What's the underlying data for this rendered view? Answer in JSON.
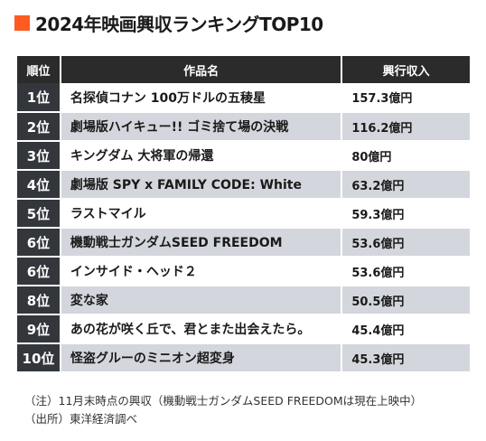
{
  "title": "2024年映画興収ランキングTOP10",
  "table": {
    "headers": [
      "順位",
      "作品名",
      "興行収入"
    ],
    "rows": [
      {
        "rank": "1位",
        "title": "名探偵コナン 100万ドルの五稜星",
        "revenue": "157.3億円"
      },
      {
        "rank": "2位",
        "title": "劇場版ハイキュー!! ゴミ捨て場の決戦",
        "revenue": "116.2億円"
      },
      {
        "rank": "3位",
        "title": "キングダム 大将軍の帰還",
        "revenue": "80億円"
      },
      {
        "rank": "4位",
        "title": "劇場版 SPY x FAMILY CODE: White",
        "revenue": "63.2億円"
      },
      {
        "rank": "5位",
        "title": "ラストマイル",
        "revenue": "59.3億円"
      },
      {
        "rank": "6位",
        "title": "機動戦士ガンダムSEED FREEDOM",
        "revenue": "53.6億円"
      },
      {
        "rank": "6位",
        "title": "インサイド・ヘッド２",
        "revenue": "53.6億円"
      },
      {
        "rank": "8位",
        "title": "変な家",
        "revenue": "50.5億円"
      },
      {
        "rank": "9位",
        "title": "あの花が咲く丘で、君とまた出会えたら。",
        "revenue": "45.4億円"
      },
      {
        "rank": "10位",
        "title": "怪盗グルーのミニオン超変身",
        "revenue": "45.3億円"
      }
    ]
  },
  "notes": {
    "note": "（注）11月末時点の興収（機動戦士ガンダムSEED FREEDOMは現在上映中）",
    "source": "（出所）東洋経済調べ"
  },
  "colors": {
    "accent": "#ff5a1f",
    "header_bg": "#2b2b2b",
    "rank_bg": "#33373c",
    "stripe_bg": "#d3d6dc"
  }
}
